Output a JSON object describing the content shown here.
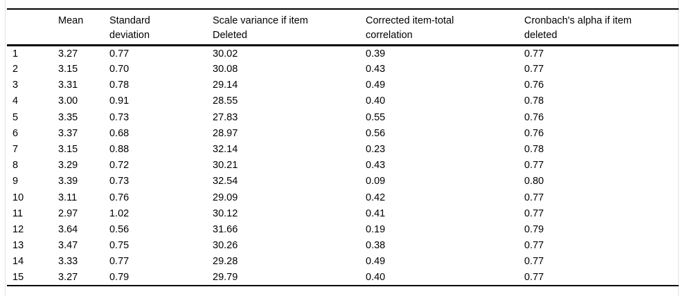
{
  "page": {
    "background": "#ffffff",
    "text_color": "#000000",
    "rule_color": "#000000",
    "edge_line_color": "#e2e2e2"
  },
  "table": {
    "description": "Item-total statistics table with reliability values",
    "headers": [
      "",
      "Mean",
      "Standard deviation",
      "Scale variance if item Deleted",
      "Corrected item-total correlation",
      "Cronbach's alpha if item deleted"
    ],
    "rows": [
      [
        "1",
        "3.27",
        "0.77",
        "30.02",
        "0.39",
        "0.77"
      ],
      [
        "2",
        "3.15",
        "0.70",
        "30.08",
        "0.43",
        "0.77"
      ],
      [
        "3",
        "3.31",
        "0.78",
        "29.14",
        "0.49",
        "0.76"
      ],
      [
        "4",
        "3.00",
        "0.91",
        "28.55",
        "0.40",
        "0.78"
      ],
      [
        "5",
        "3.35",
        "0.73",
        "27.83",
        "0.55",
        "0.76"
      ],
      [
        "6",
        "3.37",
        "0.68",
        "28.97",
        "0.56",
        "0.76"
      ],
      [
        "7",
        "3.15",
        "0.88",
        "32.14",
        "0.23",
        "0.78"
      ],
      [
        "8",
        "3.29",
        "0.72",
        "30.21",
        "0.43",
        "0.77"
      ],
      [
        "9",
        "3.39",
        "0.73",
        "32.54",
        "0.09",
        "0.80"
      ],
      [
        "10",
        "3.11",
        "0.76",
        "29.09",
        "0.42",
        "0.77"
      ],
      [
        "11",
        "2.97",
        "1.02",
        "30.12",
        "0.41",
        "0.77"
      ],
      [
        "12",
        "3.64",
        "0.56",
        "31.66",
        "0.19",
        "0.79"
      ],
      [
        "13",
        "3.47",
        "0.75",
        "30.26",
        "0.38",
        "0.77"
      ],
      [
        "14",
        "3.33",
        "0.77",
        "29.28",
        "0.49",
        "0.77"
      ],
      [
        "15",
        "3.27",
        "0.79",
        "29.79",
        "0.40",
        "0.77"
      ]
    ]
  }
}
